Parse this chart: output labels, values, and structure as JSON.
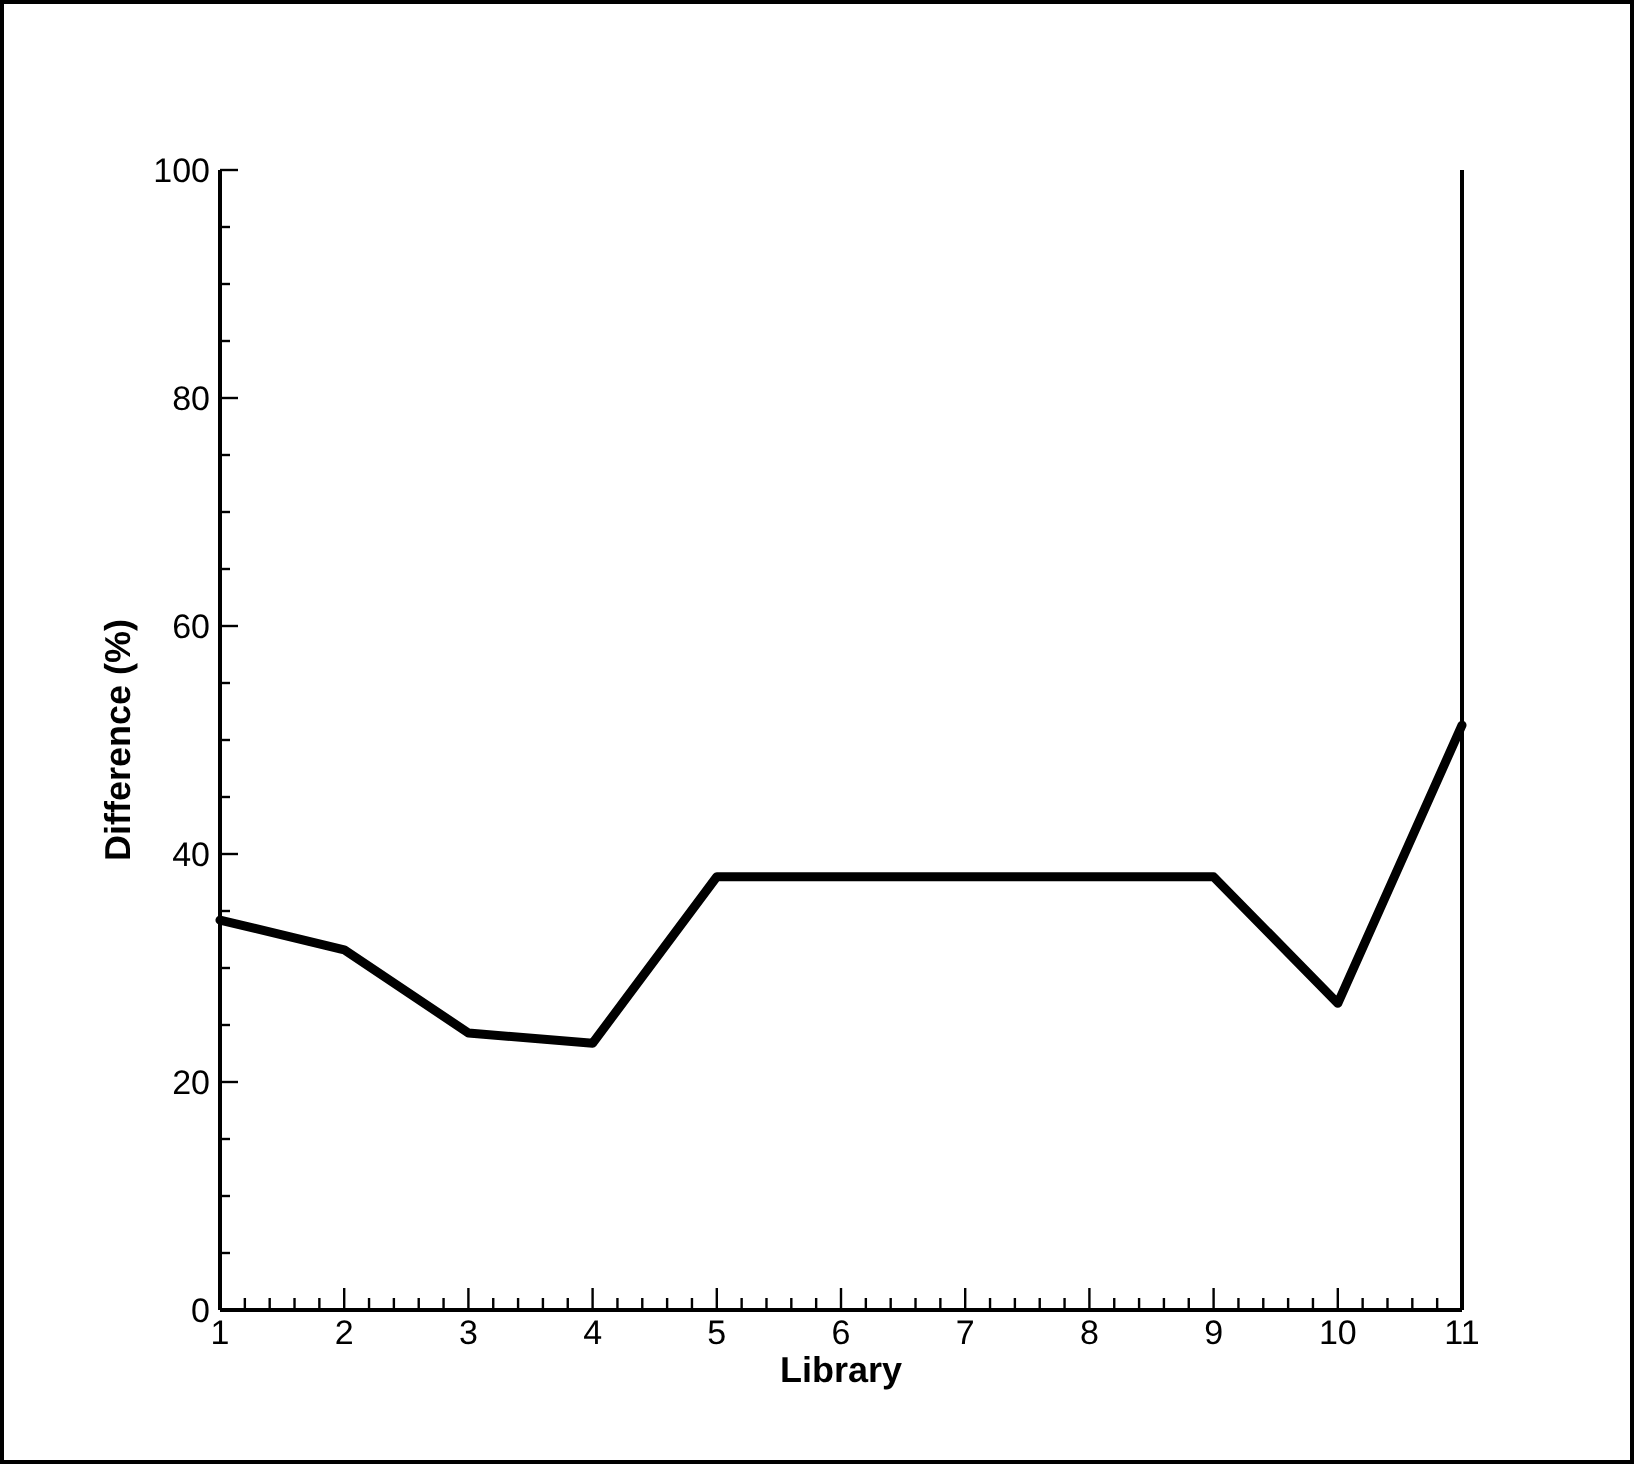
{
  "chart_data": {
    "type": "line",
    "xlabel": "Library",
    "ylabel": "Difference (%)",
    "x": [
      1,
      2,
      3,
      4,
      5,
      6,
      7,
      8,
      9,
      10,
      11
    ],
    "series": [
      {
        "color": "#000000",
        "values": [
          34.2,
          31.6,
          24.3,
          23.4,
          38,
          38,
          38,
          38,
          38,
          26.9,
          51.3
        ]
      }
    ],
    "xlim": [
      1,
      11
    ],
    "xticks": [
      1,
      {
        "value": 1.2,
        "label": null
      },
      {
        "value": 1.4,
        "label": null
      },
      {
        "value": 1.6,
        "label": null
      },
      {
        "value": 1.8,
        "label": null
      },
      2,
      {
        "value": 2.2,
        "label": null
      },
      {
        "value": 2.4,
        "label": null
      },
      {
        "value": 2.6,
        "label": null
      },
      {
        "value": 2.8,
        "label": null
      },
      3,
      {
        "value": 3.2,
        "label": null
      },
      {
        "value": 3.4,
        "label": null
      },
      {
        "value": 3.6,
        "label": null
      },
      {
        "value": 3.8,
        "label": null
      },
      4,
      {
        "value": 4.2,
        "label": null
      },
      {
        "value": 4.4,
        "label": null
      },
      {
        "value": 4.6,
        "label": null
      },
      {
        "value": 4.8,
        "label": null
      },
      5,
      {
        "value": 5.2,
        "label": null
      },
      {
        "value": 5.4,
        "label": null
      },
      {
        "value": 5.6,
        "label": null
      },
      {
        "value": 5.8,
        "label": null
      },
      6,
      {
        "value": 6.2,
        "label": null
      },
      {
        "value": 6.4,
        "label": null
      },
      {
        "value": 6.6,
        "label": null
      },
      {
        "value": 6.8,
        "label": null
      },
      7,
      {
        "value": 7.2,
        "label": null
      },
      {
        "value": 7.4,
        "label": null
      },
      {
        "value": 7.6,
        "label": null
      },
      {
        "value": 7.8,
        "label": null
      },
      8,
      {
        "value": 8.2,
        "label": null
      },
      {
        "value": 8.4,
        "label": null
      },
      {
        "value": 8.6,
        "label": null
      },
      {
        "value": 8.8,
        "label": null
      },
      9,
      {
        "value": 9.2,
        "label": null
      },
      {
        "value": 9.4,
        "label": null
      },
      {
        "value": 9.6,
        "label": null
      },
      {
        "value": 9.8,
        "label": null
      },
      10,
      {
        "value": 10.2,
        "label": null
      },
      {
        "value": 10.4,
        "label": null
      },
      {
        "value": 10.6,
        "label": null
      },
      {
        "value": 10.8,
        "label": null
      },
      11
    ],
    "ylim": [
      0,
      100
    ],
    "yticks": [
      0,
      {
        "value": 5,
        "label": null
      },
      {
        "value": 10,
        "label": null
      },
      {
        "value": 15,
        "label": null
      },
      20,
      {
        "value": 25,
        "label": null
      },
      {
        "value": 30,
        "label": null
      },
      {
        "value": 35,
        "label": null
      },
      40,
      {
        "value": 45,
        "label": null
      },
      {
        "value": 50,
        "label": null
      },
      {
        "value": 55,
        "label": null
      },
      60,
      {
        "value": 65,
        "label": null
      },
      {
        "value": 70,
        "label": null
      },
      {
        "value": 75,
        "label": null
      },
      80,
      {
        "value": 85,
        "label": null
      },
      {
        "value": 90,
        "label": null
      },
      {
        "value": 95,
        "label": null
      },
      100
    ],
    "grid": false,
    "marker": "none",
    "line_style": "solid"
  }
}
